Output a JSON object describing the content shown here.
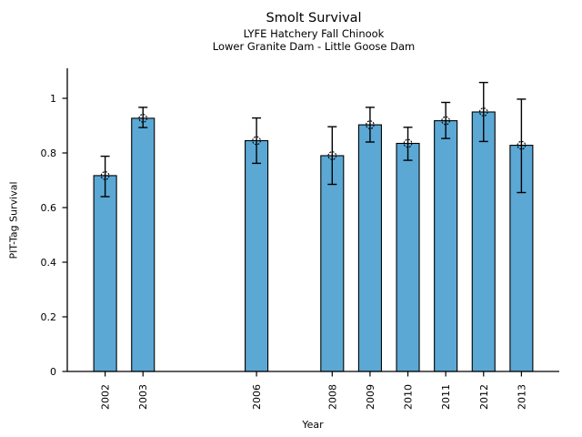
{
  "page": {
    "background_color": "#ffffff",
    "text_color": "#000000"
  },
  "chart_data": {
    "type": "bar",
    "title": "Smolt Survival",
    "subtitle1": "LYFE Hatchery Fall Chinook",
    "subtitle2": "Lower Granite Dam - Little Goose Dam",
    "xlabel": "Year",
    "ylabel": "PIT-Tag Survival",
    "categories": [
      2002,
      2003,
      2006,
      2008,
      2009,
      2010,
      2011,
      2012,
      2013
    ],
    "values": [
      0.717,
      0.927,
      0.845,
      0.79,
      0.903,
      0.835,
      0.918,
      0.95,
      0.828
    ],
    "ci_low": [
      0.64,
      0.893,
      0.762,
      0.685,
      0.84,
      0.773,
      0.853,
      0.842,
      0.655
    ],
    "ci_high": [
      0.788,
      0.967,
      0.928,
      0.896,
      0.967,
      0.894,
      0.985,
      1.058,
      0.997
    ],
    "xlim": [
      2001,
      2014
    ],
    "ylim": [
      0,
      1.11
    ],
    "yticks": [
      0,
      0.2,
      0.4,
      0.6,
      0.8,
      1
    ],
    "ytick_labels": [
      "0",
      "0.2",
      "0.4",
      "0.6",
      "0.8",
      "1"
    ],
    "grid": false,
    "legend_position": "none",
    "marker": "open-circle-with-cross",
    "bar_color": "#5BA8D5",
    "bar_edge_color": "#000000",
    "error_bar_color": "#000000",
    "axis_color": "#000000"
  }
}
